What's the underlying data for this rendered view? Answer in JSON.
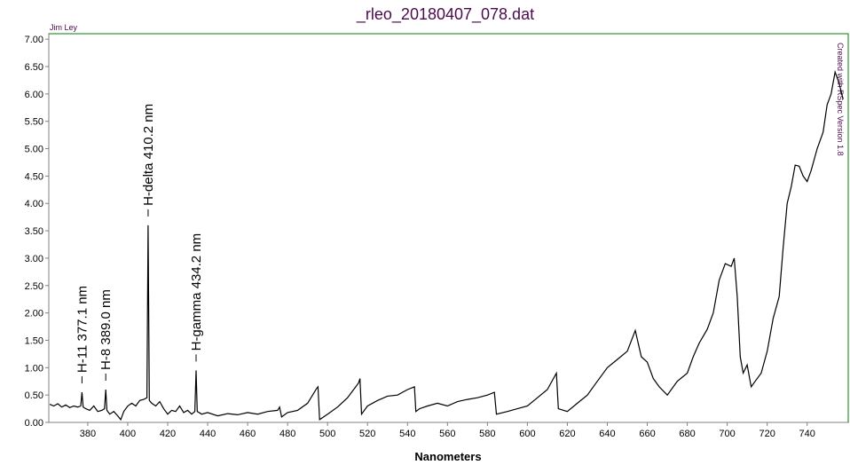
{
  "chart_data": {
    "type": "line",
    "title": "_rleo_20180407_078.dat",
    "author": "Jim Ley",
    "credit": "Created with RSpec Version 1.8",
    "xlabel": "Nanometers",
    "color": "#000000",
    "frame_color": "#008000",
    "xlim": [
      360.5,
      761
    ],
    "ylim": [
      0,
      7.1
    ],
    "xticks": [
      380,
      400,
      420,
      440,
      460,
      480,
      500,
      520,
      540,
      560,
      580,
      600,
      620,
      640,
      660,
      680,
      700,
      720,
      740
    ],
    "yticks": [
      {
        "value": 0,
        "label": "0.00"
      },
      {
        "value": 0.5,
        "label": "0.50"
      },
      {
        "value": 1,
        "label": "1.00"
      },
      {
        "value": 1.5,
        "label": "1.50"
      },
      {
        "value": 2,
        "label": "2.00"
      },
      {
        "value": 2.5,
        "label": "2.50"
      },
      {
        "value": 3,
        "label": "3.00"
      },
      {
        "value": 3.5,
        "label": "3.50"
      },
      {
        "value": 4,
        "label": "4.00"
      },
      {
        "value": 4.5,
        "label": "4.50"
      },
      {
        "value": 5,
        "label": "5.00"
      },
      {
        "value": 5.5,
        "label": "5.50"
      },
      {
        "value": 6,
        "label": "6.00"
      },
      {
        "value": 6.5,
        "label": "6.50"
      },
      {
        "value": 7,
        "label": "7.00"
      }
    ],
    "annotations": [
      {
        "text": "H-11 377.1 nm",
        "x": 377.1,
        "y": 0.55
      },
      {
        "text": "H-8 389.0 nm",
        "x": 389.0,
        "y": 0.6
      },
      {
        "text": "H-delta 410.2 nm",
        "x": 410.2,
        "y": 3.6
      },
      {
        "text": "H-gamma 434.2 nm",
        "x": 434.2,
        "y": 0.95
      }
    ],
    "x": [
      361,
      363,
      365,
      367,
      369,
      371,
      373,
      375,
      376.5,
      377.1,
      377.7,
      379,
      381,
      383,
      385,
      387,
      388.4,
      389,
      389.6,
      391,
      393,
      395,
      396.5,
      398,
      400,
      402,
      404,
      406,
      408,
      409.6,
      410.2,
      410.8,
      412,
      414,
      416,
      418,
      420,
      422,
      424,
      426,
      428,
      430,
      432,
      433.6,
      434.2,
      434.8,
      437,
      440,
      445,
      450,
      455,
      460,
      465,
      470,
      475,
      476,
      477,
      480,
      485,
      490,
      494.5,
      495.2,
      496,
      500,
      505,
      510,
      515.5,
      516.2,
      517,
      520,
      525,
      530,
      535,
      540,
      543.5,
      544.2,
      546,
      550,
      555,
      560,
      565,
      570,
      575,
      580,
      583.5,
      584.5,
      590,
      595,
      600,
      605,
      610,
      614.5,
      615.5,
      620,
      625,
      630,
      635,
      640,
      645,
      650,
      654,
      657,
      660,
      663,
      666,
      670,
      675,
      680,
      683,
      686,
      690,
      693,
      696,
      699,
      702,
      703.5,
      705,
      706.5,
      708,
      710,
      712,
      714,
      717,
      720,
      723,
      726,
      728,
      730,
      732,
      734,
      736,
      738,
      740,
      742,
      745,
      748,
      750,
      752,
      754,
      756,
      758
    ],
    "values": [
      0.33,
      0.3,
      0.34,
      0.28,
      0.32,
      0.27,
      0.3,
      0.28,
      0.3,
      0.55,
      0.28,
      0.25,
      0.22,
      0.3,
      0.2,
      0.22,
      0.25,
      0.6,
      0.22,
      0.15,
      0.2,
      0.12,
      0.05,
      0.2,
      0.3,
      0.35,
      0.3,
      0.4,
      0.42,
      0.45,
      3.6,
      0.4,
      0.35,
      0.3,
      0.38,
      0.25,
      0.15,
      0.22,
      0.2,
      0.3,
      0.18,
      0.22,
      0.15,
      0.2,
      0.95,
      0.2,
      0.15,
      0.18,
      0.12,
      0.16,
      0.14,
      0.18,
      0.15,
      0.2,
      0.22,
      0.28,
      0.1,
      0.18,
      0.22,
      0.35,
      0.62,
      0.65,
      0.05,
      0.15,
      0.28,
      0.45,
      0.72,
      0.8,
      0.15,
      0.3,
      0.4,
      0.48,
      0.5,
      0.6,
      0.65,
      0.2,
      0.25,
      0.3,
      0.35,
      0.3,
      0.38,
      0.42,
      0.45,
      0.5,
      0.55,
      0.15,
      0.2,
      0.25,
      0.3,
      0.45,
      0.6,
      0.9,
      0.25,
      0.2,
      0.35,
      0.5,
      0.75,
      1.0,
      1.15,
      1.3,
      1.68,
      1.2,
      1.1,
      0.8,
      0.65,
      0.5,
      0.75,
      0.9,
      1.2,
      1.45,
      1.7,
      2.0,
      2.6,
      2.9,
      2.85,
      3.0,
      2.3,
      1.2,
      0.9,
      1.05,
      0.65,
      0.75,
      0.9,
      1.3,
      1.9,
      2.3,
      3.2,
      4.0,
      4.3,
      4.7,
      4.68,
      4.5,
      4.4,
      4.6,
      5.0,
      5.3,
      5.8,
      6.0,
      6.4,
      6.2,
      5.9
    ]
  }
}
